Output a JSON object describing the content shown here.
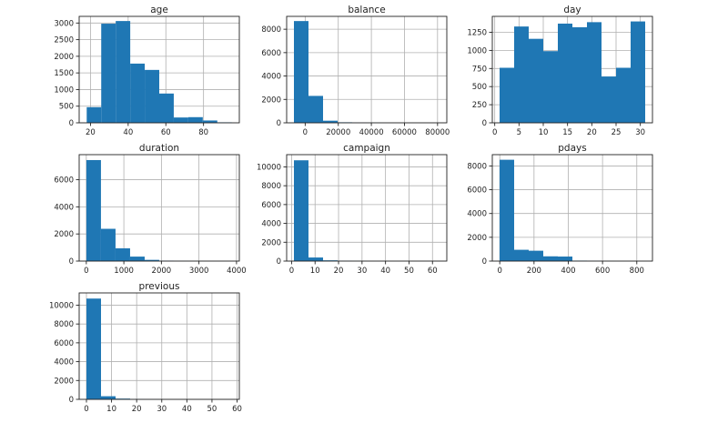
{
  "chart_data": [
    {
      "type": "bar",
      "title": "age",
      "bins": [
        {
          "x0": 18,
          "x1": 25.7,
          "count": 470
        },
        {
          "x0": 25.7,
          "x1": 33.4,
          "count": 2980
        },
        {
          "x0": 33.4,
          "x1": 41.1,
          "count": 3060
        },
        {
          "x0": 41.1,
          "x1": 48.8,
          "count": 1780
        },
        {
          "x0": 48.8,
          "x1": 56.5,
          "count": 1590
        },
        {
          "x0": 56.5,
          "x1": 64.2,
          "count": 880
        },
        {
          "x0": 64.2,
          "x1": 71.9,
          "count": 160
        },
        {
          "x0": 71.9,
          "x1": 79.6,
          "count": 170
        },
        {
          "x0": 79.6,
          "x1": 87.3,
          "count": 70
        },
        {
          "x0": 87.3,
          "x1": 95,
          "count": 15
        }
      ],
      "xlim": [
        14,
        99
      ],
      "ylim": [
        0,
        3200
      ],
      "xticks": [
        20,
        40,
        60,
        80
      ],
      "yticks": [
        0,
        500,
        1000,
        1500,
        2000,
        2500,
        3000
      ],
      "ytick_labels": [
        "0",
        "500",
        "1000",
        "1500",
        "2000",
        "2500",
        "3000"
      ],
      "grid": true,
      "color": "#1f77b4"
    },
    {
      "type": "bar",
      "title": "balance",
      "bins": [
        {
          "x0": -6800,
          "x1": 2000,
          "count": 8700
        },
        {
          "x0": 2000,
          "x1": 10800,
          "count": 2300
        },
        {
          "x0": 10800,
          "x1": 19600,
          "count": 180
        },
        {
          "x0": 19600,
          "x1": 28400,
          "count": 45
        },
        {
          "x0": 28400,
          "x1": 37200,
          "count": 15
        },
        {
          "x0": 37200,
          "x1": 46000,
          "count": 8
        },
        {
          "x0": 46000,
          "x1": 54800,
          "count": 4
        },
        {
          "x0": 54800,
          "x1": 63600,
          "count": 3
        },
        {
          "x0": 63600,
          "x1": 72400,
          "count": 1
        },
        {
          "x0": 72400,
          "x1": 81200,
          "count": 2
        }
      ],
      "xlim": [
        -11200,
        85600
      ],
      "ylim": [
        0,
        9100
      ],
      "xticks": [
        0,
        20000,
        40000,
        60000,
        80000
      ],
      "yticks": [
        0,
        2000,
        4000,
        6000,
        8000
      ],
      "ytick_labels": [
        "0",
        "2000",
        "4000",
        "6000",
        "8000"
      ],
      "grid": true,
      "color": "#1f77b4"
    },
    {
      "type": "bar",
      "title": "day",
      "bins": [
        {
          "x0": 1,
          "x1": 4,
          "count": 760
        },
        {
          "x0": 4,
          "x1": 7,
          "count": 1330
        },
        {
          "x0": 7,
          "x1": 10,
          "count": 1160
        },
        {
          "x0": 10,
          "x1": 13,
          "count": 990
        },
        {
          "x0": 13,
          "x1": 16,
          "count": 1370
        },
        {
          "x0": 16,
          "x1": 19,
          "count": 1320
        },
        {
          "x0": 19,
          "x1": 22,
          "count": 1390
        },
        {
          "x0": 22,
          "x1": 25,
          "count": 640
        },
        {
          "x0": 25,
          "x1": 28,
          "count": 760
        },
        {
          "x0": 28,
          "x1": 31,
          "count": 1400
        }
      ],
      "xlim": [
        -0.5,
        32.5
      ],
      "ylim": [
        0,
        1470
      ],
      "xticks": [
        0,
        5,
        10,
        15,
        20,
        25,
        30
      ],
      "yticks": [
        0,
        250,
        500,
        750,
        1000,
        1250
      ],
      "ytick_labels": [
        "0",
        "250",
        "500",
        "750",
        "1000",
        "1250"
      ],
      "grid": true,
      "color": "#1f77b4"
    },
    {
      "type": "bar",
      "title": "duration",
      "bins": [
        {
          "x0": 2,
          "x1": 390,
          "count": 7450
        },
        {
          "x0": 390,
          "x1": 778,
          "count": 2380
        },
        {
          "x0": 778,
          "x1": 1166,
          "count": 940
        },
        {
          "x0": 1166,
          "x1": 1554,
          "count": 330
        },
        {
          "x0": 1554,
          "x1": 1942,
          "count": 90
        },
        {
          "x0": 1942,
          "x1": 2330,
          "count": 30
        },
        {
          "x0": 2330,
          "x1": 2718,
          "count": 10
        },
        {
          "x0": 2718,
          "x1": 3106,
          "count": 4
        },
        {
          "x0": 3106,
          "x1": 3494,
          "count": 2
        },
        {
          "x0": 3494,
          "x1": 3882,
          "count": 1
        }
      ],
      "xlim": [
        -190,
        4075
      ],
      "ylim": [
        0,
        7850
      ],
      "xticks": [
        0,
        1000,
        2000,
        3000,
        4000
      ],
      "yticks": [
        0,
        2000,
        4000,
        6000
      ],
      "ytick_labels": [
        "0",
        "2000",
        "4000",
        "6000"
      ],
      "grid": true,
      "color": "#1f77b4"
    },
    {
      "type": "bar",
      "title": "campaign",
      "bins": [
        {
          "x0": 1,
          "x1": 7.2,
          "count": 10700
        },
        {
          "x0": 7.2,
          "x1": 13.4,
          "count": 380
        },
        {
          "x0": 13.4,
          "x1": 19.6,
          "count": 80
        },
        {
          "x0": 19.6,
          "x1": 25.8,
          "count": 25
        },
        {
          "x0": 25.8,
          "x1": 32,
          "count": 10
        },
        {
          "x0": 32,
          "x1": 38.2,
          "count": 5
        },
        {
          "x0": 38.2,
          "x1": 44.4,
          "count": 2
        },
        {
          "x0": 44.4,
          "x1": 50.6,
          "count": 1
        },
        {
          "x0": 50.6,
          "x1": 56.8,
          "count": 1
        },
        {
          "x0": 56.8,
          "x1": 63,
          "count": 1
        }
      ],
      "xlim": [
        -2.1,
        66.1
      ],
      "ylim": [
        0,
        11300
      ],
      "xticks": [
        0,
        10,
        20,
        30,
        40,
        50,
        60
      ],
      "yticks": [
        0,
        2000,
        4000,
        6000,
        8000,
        10000
      ],
      "ytick_labels": [
        "0",
        "2000",
        "4000",
        "6000",
        "8000",
        "10000"
      ],
      "grid": true,
      "color": "#1f77b4"
    },
    {
      "type": "bar",
      "title": "pdays",
      "bins": [
        {
          "x0": -1,
          "x1": 84,
          "count": 8520
        },
        {
          "x0": 84,
          "x1": 169,
          "count": 950
        },
        {
          "x0": 169,
          "x1": 254,
          "count": 870
        },
        {
          "x0": 254,
          "x1": 339,
          "count": 400
        },
        {
          "x0": 339,
          "x1": 424,
          "count": 380
        },
        {
          "x0": 424,
          "x1": 509,
          "count": 40
        },
        {
          "x0": 509,
          "x1": 594,
          "count": 15
        },
        {
          "x0": 594,
          "x1": 679,
          "count": 5
        },
        {
          "x0": 679,
          "x1": 764,
          "count": 2
        },
        {
          "x0": 764,
          "x1": 849,
          "count": 1
        }
      ],
      "xlim": [
        -43.5,
        891.5
      ],
      "ylim": [
        0,
        8950
      ],
      "xticks": [
        0,
        200,
        400,
        600,
        800
      ],
      "yticks": [
        0,
        2000,
        4000,
        6000,
        8000
      ],
      "ytick_labels": [
        "0",
        "2000",
        "4000",
        "6000",
        "8000"
      ],
      "grid": true,
      "color": "#1f77b4"
    },
    {
      "type": "bar",
      "title": "previous",
      "bins": [
        {
          "x0": 0,
          "x1": 5.8,
          "count": 10700
        },
        {
          "x0": 5.8,
          "x1": 11.6,
          "count": 330
        },
        {
          "x0": 11.6,
          "x1": 17.4,
          "count": 80
        },
        {
          "x0": 17.4,
          "x1": 23.2,
          "count": 25
        },
        {
          "x0": 23.2,
          "x1": 29,
          "count": 12
        },
        {
          "x0": 29,
          "x1": 34.8,
          "count": 5
        },
        {
          "x0": 34.8,
          "x1": 40.6,
          "count": 3
        },
        {
          "x0": 40.6,
          "x1": 46.4,
          "count": 1
        },
        {
          "x0": 46.4,
          "x1": 52.2,
          "count": 1
        },
        {
          "x0": 52.2,
          "x1": 58,
          "count": 1
        }
      ],
      "xlim": [
        -2.9,
        60.9
      ],
      "ylim": [
        0,
        11300
      ],
      "xticks": [
        0,
        10,
        20,
        30,
        40,
        50,
        60
      ],
      "yticks": [
        0,
        2000,
        4000,
        6000,
        8000,
        10000
      ],
      "ytick_labels": [
        "0",
        "2000",
        "4000",
        "6000",
        "8000",
        "10000"
      ],
      "grid": true,
      "color": "#1f77b4"
    }
  ]
}
